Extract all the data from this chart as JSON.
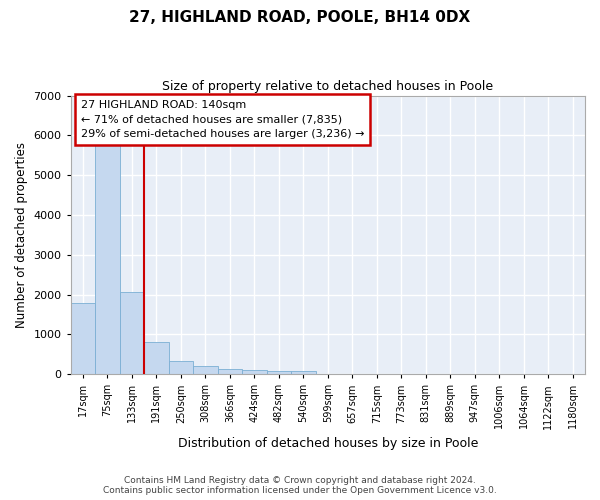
{
  "title": "27, HIGHLAND ROAD, POOLE, BH14 0DX",
  "subtitle": "Size of property relative to detached houses in Poole",
  "xlabel": "Distribution of detached houses by size in Poole",
  "ylabel": "Number of detached properties",
  "bar_color": "#c5d8ef",
  "bar_edge_color": "#7bafd4",
  "background_color": "#e8eef7",
  "grid_color": "#ffffff",
  "annotation_box_color": "#cc0000",
  "annotation_line1": "27 HIGHLAND ROAD: 140sqm",
  "annotation_line2": "← 71% of detached houses are smaller (7,835)",
  "annotation_line3": "29% of semi-detached houses are larger (3,236) →",
  "property_line_color": "#cc0000",
  "footer_line1": "Contains HM Land Registry data © Crown copyright and database right 2024.",
  "footer_line2": "Contains public sector information licensed under the Open Government Licence v3.0.",
  "categories": [
    "17sqm",
    "75sqm",
    "133sqm",
    "191sqm",
    "250sqm",
    "308sqm",
    "366sqm",
    "424sqm",
    "482sqm",
    "540sqm",
    "599sqm",
    "657sqm",
    "715sqm",
    "773sqm",
    "831sqm",
    "889sqm",
    "947sqm",
    "1006sqm",
    "1064sqm",
    "1122sqm",
    "1180sqm"
  ],
  "values": [
    1780,
    5790,
    2060,
    820,
    340,
    200,
    120,
    110,
    85,
    75,
    10,
    10,
    10,
    0,
    0,
    0,
    0,
    0,
    0,
    0,
    0
  ],
  "ylim": [
    0,
    7000
  ],
  "yticks": [
    0,
    1000,
    2000,
    3000,
    4000,
    5000,
    6000,
    7000
  ],
  "prop_bar_index": 2,
  "bar_width": 1.0
}
